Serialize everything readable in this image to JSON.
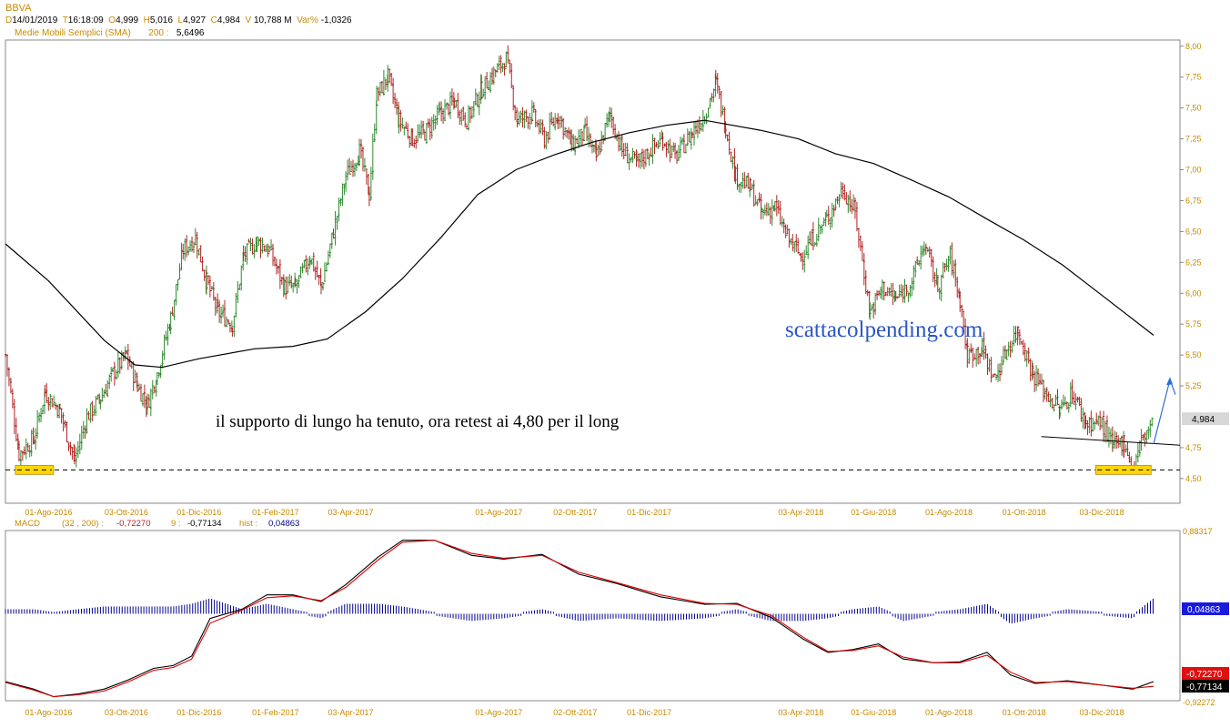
{
  "header": {
    "symbol": "BBVA",
    "date_key": "D",
    "date": "14/01/2019",
    "time_key": "T",
    "time": "16:18:09",
    "open_key": "O",
    "open": "4,999",
    "high_key": "H",
    "high": "5,016",
    "low_key": "L",
    "low": "4,927",
    "close_key": "C",
    "close": "4,984",
    "volume_key": "V",
    "volume": "10,788 M",
    "varpct_key": "Var%",
    "varpct": "-1,0326",
    "sma_label": "Medie Mobili Semplici (SMA)",
    "sma_period": "200 :",
    "sma_value": "5,6496"
  },
  "annotations": {
    "support_note": "il supporto di lungo ha tenuto, ora retest ai 4,80 per il long",
    "watermark": "scattacolpending.com"
  },
  "colors": {
    "up_candle": "#2e8b2e",
    "down_candle": "#b22222",
    "sma_line": "#000000",
    "macd_line": "#000000",
    "signal_line": "#dd0000",
    "hist": "#00008b",
    "highlight_box": "#ffd700",
    "arrow": "#2a6fd6",
    "axis_text": "#c98a00"
  },
  "chart_data": [
    {
      "type": "candlestick",
      "title": "BBVA",
      "ylim": [
        4.3,
        8.05
      ],
      "y_ticks": [
        "8,00",
        "7,75",
        "7,50",
        "7,25",
        "7,00",
        "6,75",
        "6,50",
        "6,25",
        "6,00",
        "5,75",
        "5,50",
        "5,25",
        "4,75",
        "4,50"
      ],
      "x_ticks": [
        "01-Ago-2016",
        "03-Ott-2016",
        "01-Dic-2016",
        "01-Feb-2017",
        "03-Apr-2017",
        "01-Ago-2017",
        "02-Ott-2017",
        "01-Dic-2017",
        "03-Apr-2018",
        "01-Giu-2018",
        "01-Ago-2018",
        "01-Ott-2018",
        "03-Dic-2018"
      ],
      "last_price_label": "4,984",
      "close_path": [
        [
          "2016-06-27",
          5.5
        ],
        [
          "2016-07-08",
          4.7
        ],
        [
          "2016-07-20",
          4.82
        ],
        [
          "2016-07-29",
          5.2
        ],
        [
          "2016-08-10",
          5.05
        ],
        [
          "2016-08-22",
          4.65
        ],
        [
          "2016-09-01",
          5.0
        ],
        [
          "2016-09-12",
          5.15
        ],
        [
          "2016-09-22",
          5.35
        ],
        [
          "2016-10-03",
          5.5
        ],
        [
          "2016-10-12",
          5.25
        ],
        [
          "2016-10-20",
          5.1
        ],
        [
          "2016-10-28",
          5.35
        ],
        [
          "2016-11-08",
          5.8
        ],
        [
          "2016-11-18",
          6.35
        ],
        [
          "2016-11-28",
          6.45
        ],
        [
          "2016-12-07",
          6.1
        ],
        [
          "2016-12-16",
          5.85
        ],
        [
          "2016-12-28",
          5.75
        ],
        [
          "2017-01-06",
          6.3
        ],
        [
          "2017-01-17",
          6.42
        ],
        [
          "2017-01-27",
          6.35
        ],
        [
          "2017-02-08",
          6.05
        ],
        [
          "2017-02-17",
          6.05
        ],
        [
          "2017-03-01",
          6.3
        ],
        [
          "2017-03-10",
          6.05
        ],
        [
          "2017-03-20",
          6.5
        ],
        [
          "2017-03-30",
          6.95
        ],
        [
          "2017-04-10",
          7.15
        ],
        [
          "2017-04-18",
          6.8
        ],
        [
          "2017-04-24",
          7.6
        ],
        [
          "2017-05-03",
          7.75
        ],
        [
          "2017-05-12",
          7.4
        ],
        [
          "2017-05-23",
          7.25
        ],
        [
          "2017-06-02",
          7.3
        ],
        [
          "2017-06-14",
          7.45
        ],
        [
          "2017-06-26",
          7.55
        ],
        [
          "2017-07-06",
          7.4
        ],
        [
          "2017-07-18",
          7.65
        ],
        [
          "2017-07-28",
          7.78
        ],
        [
          "2017-08-07",
          7.9
        ],
        [
          "2017-08-16",
          7.4
        ],
        [
          "2017-08-28",
          7.45
        ],
        [
          "2017-09-07",
          7.25
        ],
        [
          "2017-09-18",
          7.45
        ],
        [
          "2017-09-29",
          7.2
        ],
        [
          "2017-10-10",
          7.3
        ],
        [
          "2017-10-19",
          7.1
        ],
        [
          "2017-10-30",
          7.45
        ],
        [
          "2017-11-09",
          7.15
        ],
        [
          "2017-11-21",
          7.05
        ],
        [
          "2017-12-01",
          7.15
        ],
        [
          "2017-12-12",
          7.25
        ],
        [
          "2017-12-22",
          7.1
        ],
        [
          "2018-01-05",
          7.3
        ],
        [
          "2018-01-15",
          7.45
        ],
        [
          "2018-01-24",
          7.7
        ],
        [
          "2018-02-01",
          7.35
        ],
        [
          "2018-02-09",
          6.95
        ],
        [
          "2018-02-21",
          6.85
        ],
        [
          "2018-03-02",
          6.65
        ],
        [
          "2018-03-13",
          6.7
        ],
        [
          "2018-03-23",
          6.45
        ],
        [
          "2018-04-03",
          6.3
        ],
        [
          "2018-04-13",
          6.45
        ],
        [
          "2018-04-24",
          6.6
        ],
        [
          "2018-05-07",
          6.85
        ],
        [
          "2018-05-17",
          6.65
        ],
        [
          "2018-05-29",
          5.85
        ],
        [
          "2018-06-08",
          6.05
        ],
        [
          "2018-06-19",
          5.95
        ],
        [
          "2018-07-02",
          6.1
        ],
        [
          "2018-07-12",
          6.4
        ],
        [
          "2018-07-23",
          6.05
        ],
        [
          "2018-08-02",
          6.3
        ],
        [
          "2018-08-10",
          5.95
        ],
        [
          "2018-08-16",
          5.5
        ],
        [
          "2018-08-28",
          5.55
        ],
        [
          "2018-09-07",
          5.3
        ],
        [
          "2018-09-17",
          5.55
        ],
        [
          "2018-09-26",
          5.7
        ],
        [
          "2018-10-08",
          5.35
        ],
        [
          "2018-10-18",
          5.2
        ],
        [
          "2018-10-30",
          5.05
        ],
        [
          "2018-11-09",
          5.2
        ],
        [
          "2018-11-20",
          4.95
        ],
        [
          "2018-12-03",
          4.95
        ],
        [
          "2018-12-12",
          4.75
        ],
        [
          "2018-12-21",
          4.8
        ],
        [
          "2018-12-28",
          4.58
        ],
        [
          "2019-01-04",
          4.8
        ],
        [
          "2019-01-14",
          4.98
        ]
      ],
      "series": [
        {
          "name": "200",
          "x": [
            "2016-06-27",
            "2016-08-01",
            "2016-09-15",
            "2016-10-10",
            "2016-11-01",
            "2016-12-01",
            "2017-01-15",
            "2017-02-15",
            "2017-03-15",
            "2017-04-15",
            "2017-05-15",
            "2017-06-15",
            "2017-07-15",
            "2017-08-15",
            "2017-09-15",
            "2017-10-15",
            "2017-11-15",
            "2017-12-15",
            "2018-01-15",
            "2018-02-01",
            "2018-03-01",
            "2018-04-01",
            "2018-05-01",
            "2018-06-01",
            "2018-07-01",
            "2018-08-01",
            "2018-09-01",
            "2018-10-01",
            "2018-11-01",
            "2018-12-01",
            "2019-01-14"
          ],
          "y": [
            6.4,
            6.1,
            5.62,
            5.42,
            5.4,
            5.47,
            5.55,
            5.57,
            5.63,
            5.85,
            6.12,
            6.45,
            6.8,
            7.0,
            7.12,
            7.22,
            7.3,
            7.36,
            7.4,
            7.37,
            7.32,
            7.25,
            7.13,
            7.05,
            6.92,
            6.78,
            6.6,
            6.43,
            6.23,
            6.0,
            5.66
          ]
        }
      ],
      "support_level": 4.57,
      "trendline": [
        [
          "2018-10-15",
          4.84
        ],
        [
          "2019-01-20",
          4.77
        ]
      ],
      "highlights": [
        [
          "2016-07-05",
          "2016-08-05"
        ],
        [
          "2018-11-28",
          "2019-01-12"
        ]
      ]
    },
    {
      "type": "line",
      "title": "MACD",
      "ylim": [
        -0.92272,
        0.88317
      ],
      "y_ticks": [
        "0,88317",
        "-0,92272"
      ],
      "macd_label": "MACD",
      "macd_params": "(32 , 200) :",
      "macd_value": "-0,72270",
      "signal_period": "9 :",
      "signal_value": "-0,77134",
      "hist_label": "hist :",
      "hist_value": "0,04863",
      "series": [
        {
          "name": "MACD",
          "x": [
            "2016-06-27",
            "2016-07-20",
            "2016-08-05",
            "2016-08-25",
            "2016-09-15",
            "2016-10-05",
            "2016-10-25",
            "2016-11-10",
            "2016-11-25",
            "2016-12-10",
            "2017-01-05",
            "2017-01-25",
            "2017-02-15",
            "2017-03-10",
            "2017-03-30",
            "2017-04-25",
            "2017-05-15",
            "2017-06-10",
            "2017-07-10",
            "2017-08-05",
            "2017-09-05",
            "2017-10-05",
            "2017-11-05",
            "2017-12-10",
            "2018-01-15",
            "2018-02-10",
            "2018-03-10",
            "2018-04-05",
            "2018-04-25",
            "2018-05-15",
            "2018-06-05",
            "2018-06-25",
            "2018-07-20",
            "2018-08-10",
            "2018-09-01",
            "2018-09-20",
            "2018-10-10",
            "2018-11-05",
            "2018-12-05",
            "2018-12-28",
            "2019-01-14"
          ],
          "y": [
            -0.72,
            -0.8,
            -0.88,
            -0.85,
            -0.8,
            -0.7,
            -0.58,
            -0.55,
            -0.45,
            -0.05,
            0.05,
            0.2,
            0.2,
            0.13,
            0.31,
            0.6,
            0.78,
            0.78,
            0.62,
            0.58,
            0.63,
            0.42,
            0.32,
            0.18,
            0.1,
            0.11,
            -0.04,
            -0.27,
            -0.41,
            -0.38,
            -0.32,
            -0.48,
            -0.52,
            -0.51,
            -0.41,
            -0.65,
            -0.74,
            -0.71,
            -0.76,
            -0.8,
            -0.72
          ]
        },
        {
          "name": "9",
          "x": [
            "2016-06-27",
            "2016-07-20",
            "2016-08-05",
            "2016-08-25",
            "2016-09-15",
            "2016-10-05",
            "2016-10-25",
            "2016-11-10",
            "2016-11-25",
            "2016-12-10",
            "2017-01-05",
            "2017-01-25",
            "2017-02-15",
            "2017-03-10",
            "2017-03-30",
            "2017-04-25",
            "2017-05-15",
            "2017-06-10",
            "2017-07-10",
            "2017-08-05",
            "2017-09-05",
            "2017-10-05",
            "2017-11-05",
            "2017-12-10",
            "2018-01-15",
            "2018-02-10",
            "2018-03-10",
            "2018-04-05",
            "2018-04-25",
            "2018-05-15",
            "2018-06-05",
            "2018-06-25",
            "2018-07-20",
            "2018-08-10",
            "2018-09-01",
            "2018-09-20",
            "2018-10-10",
            "2018-11-05",
            "2018-12-05",
            "2018-12-28",
            "2019-01-14"
          ],
          "y": [
            -0.73,
            -0.81,
            -0.88,
            -0.86,
            -0.82,
            -0.72,
            -0.6,
            -0.57,
            -0.48,
            -0.1,
            0.04,
            0.17,
            0.19,
            0.14,
            0.28,
            0.57,
            0.76,
            0.78,
            0.64,
            0.59,
            0.62,
            0.44,
            0.33,
            0.2,
            0.11,
            0.1,
            -0.02,
            -0.25,
            -0.4,
            -0.39,
            -0.34,
            -0.46,
            -0.52,
            -0.52,
            -0.44,
            -0.62,
            -0.73,
            -0.72,
            -0.76,
            -0.79,
            -0.77
          ]
        }
      ]
    }
  ]
}
